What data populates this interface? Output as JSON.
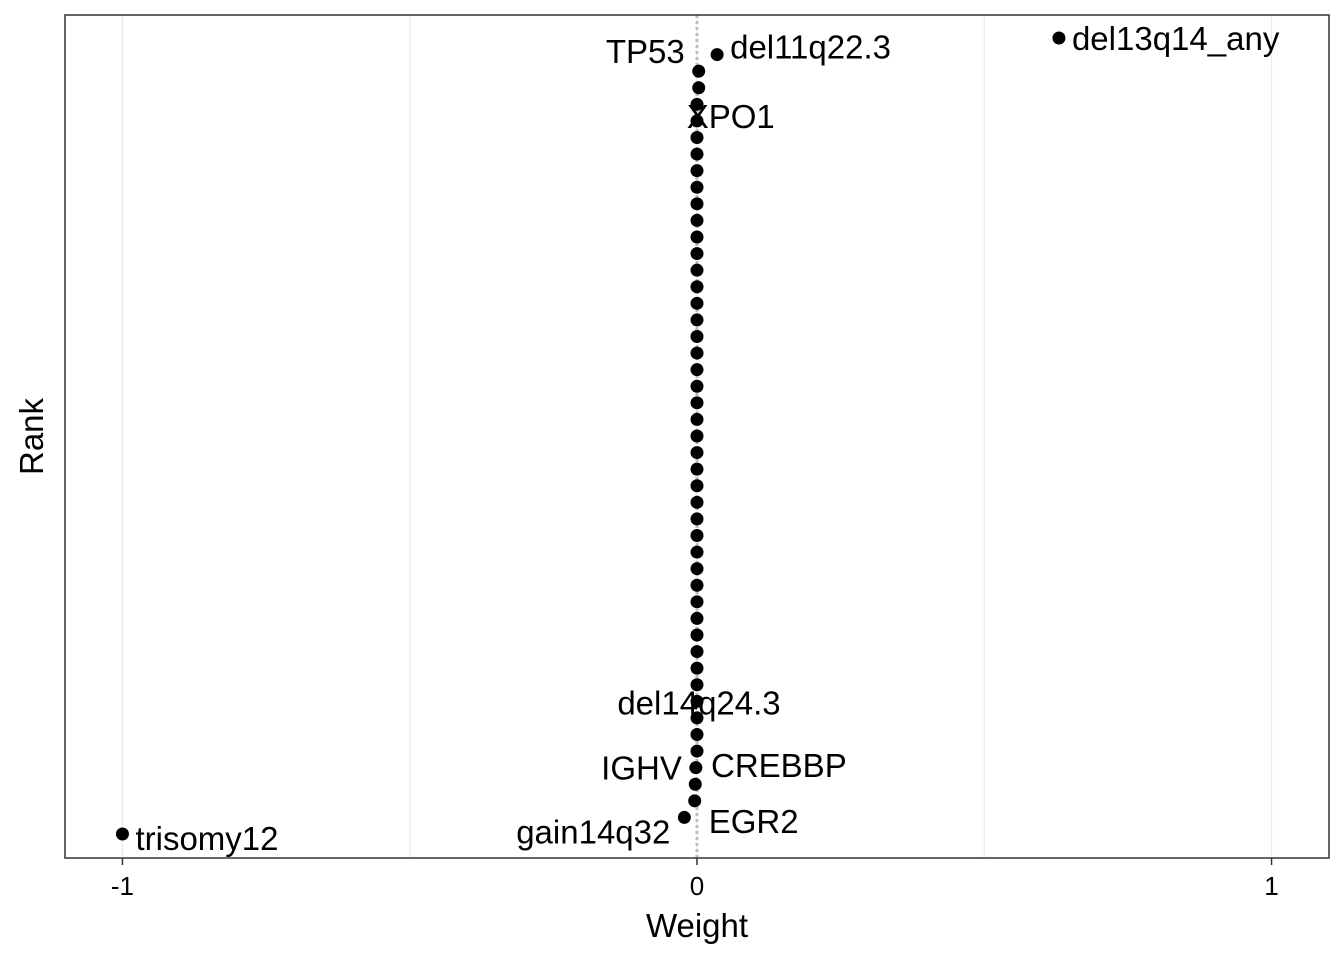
{
  "chart_data": {
    "type": "scatter",
    "xlabel": "Weight",
    "ylabel": "Rank",
    "xlim": [
      -1.1,
      1.1
    ],
    "x_ticks": [
      -1,
      0,
      1
    ],
    "x_tick_labels": [
      "-1",
      "0",
      "1"
    ],
    "grid": "vertical",
    "reference_line_x": 0,
    "n_features": 49,
    "points": [
      {
        "label": "del13q14_any",
        "x": 0.63,
        "rank": 49
      },
      {
        "label": "del11q22.3",
        "x": 0.035,
        "rank": 48
      },
      {
        "label": "TP53",
        "x": 0.003,
        "rank": 47
      },
      {
        "label": "XPO1",
        "x": 0.003,
        "rank": 46
      },
      {
        "label": "",
        "x": 0.0,
        "rank": 45
      },
      {
        "label": "",
        "x": 0.0,
        "rank": 44
      },
      {
        "label": "",
        "x": 0.0,
        "rank": 43
      },
      {
        "label": "",
        "x": 0.0,
        "rank": 42
      },
      {
        "label": "",
        "x": 0.0,
        "rank": 41
      },
      {
        "label": "",
        "x": 0.0,
        "rank": 40
      },
      {
        "label": "",
        "x": 0.0,
        "rank": 39
      },
      {
        "label": "",
        "x": 0.0,
        "rank": 38
      },
      {
        "label": "",
        "x": 0.0,
        "rank": 37
      },
      {
        "label": "",
        "x": 0.0,
        "rank": 36
      },
      {
        "label": "",
        "x": 0.0,
        "rank": 35
      },
      {
        "label": "",
        "x": 0.0,
        "rank": 34
      },
      {
        "label": "",
        "x": 0.0,
        "rank": 33
      },
      {
        "label": "",
        "x": 0.0,
        "rank": 32
      },
      {
        "label": "",
        "x": 0.0,
        "rank": 31
      },
      {
        "label": "",
        "x": 0.0,
        "rank": 30
      },
      {
        "label": "",
        "x": 0.0,
        "rank": 29
      },
      {
        "label": "",
        "x": 0.0,
        "rank": 28
      },
      {
        "label": "",
        "x": 0.0,
        "rank": 27
      },
      {
        "label": "",
        "x": 0.0,
        "rank": 26
      },
      {
        "label": "",
        "x": 0.0,
        "rank": 25
      },
      {
        "label": "",
        "x": 0.0,
        "rank": 24
      },
      {
        "label": "",
        "x": 0.0,
        "rank": 23
      },
      {
        "label": "",
        "x": 0.0,
        "rank": 22
      },
      {
        "label": "",
        "x": 0.0,
        "rank": 21
      },
      {
        "label": "",
        "x": 0.0,
        "rank": 20
      },
      {
        "label": "",
        "x": 0.0,
        "rank": 19
      },
      {
        "label": "",
        "x": 0.0,
        "rank": 18
      },
      {
        "label": "",
        "x": 0.0,
        "rank": 17
      },
      {
        "label": "",
        "x": 0.0,
        "rank": 16
      },
      {
        "label": "",
        "x": 0.0,
        "rank": 15
      },
      {
        "label": "",
        "x": 0.0,
        "rank": 14
      },
      {
        "label": "",
        "x": 0.0,
        "rank": 13
      },
      {
        "label": "",
        "x": 0.0,
        "rank": 12
      },
      {
        "label": "",
        "x": 0.0,
        "rank": 11
      },
      {
        "label": "",
        "x": 0.0,
        "rank": 10
      },
      {
        "label": "",
        "x": 0.0,
        "rank": 9
      },
      {
        "label": "",
        "x": 0.0,
        "rank": 8
      },
      {
        "label": "del14q24.3",
        "x": 0.0,
        "rank": 7
      },
      {
        "label": "CREBBP",
        "x": 0.0,
        "rank": 6
      },
      {
        "label": "IGHV",
        "x": -0.002,
        "rank": 5
      },
      {
        "label": "",
        "x": -0.003,
        "rank": 4
      },
      {
        "label": "EGR2",
        "x": -0.004,
        "rank": 3
      },
      {
        "label": "gain14q32",
        "x": -0.022,
        "rank": 2
      },
      {
        "label": "trisomy12",
        "x": -1.0,
        "rank": 1
      }
    ]
  }
}
